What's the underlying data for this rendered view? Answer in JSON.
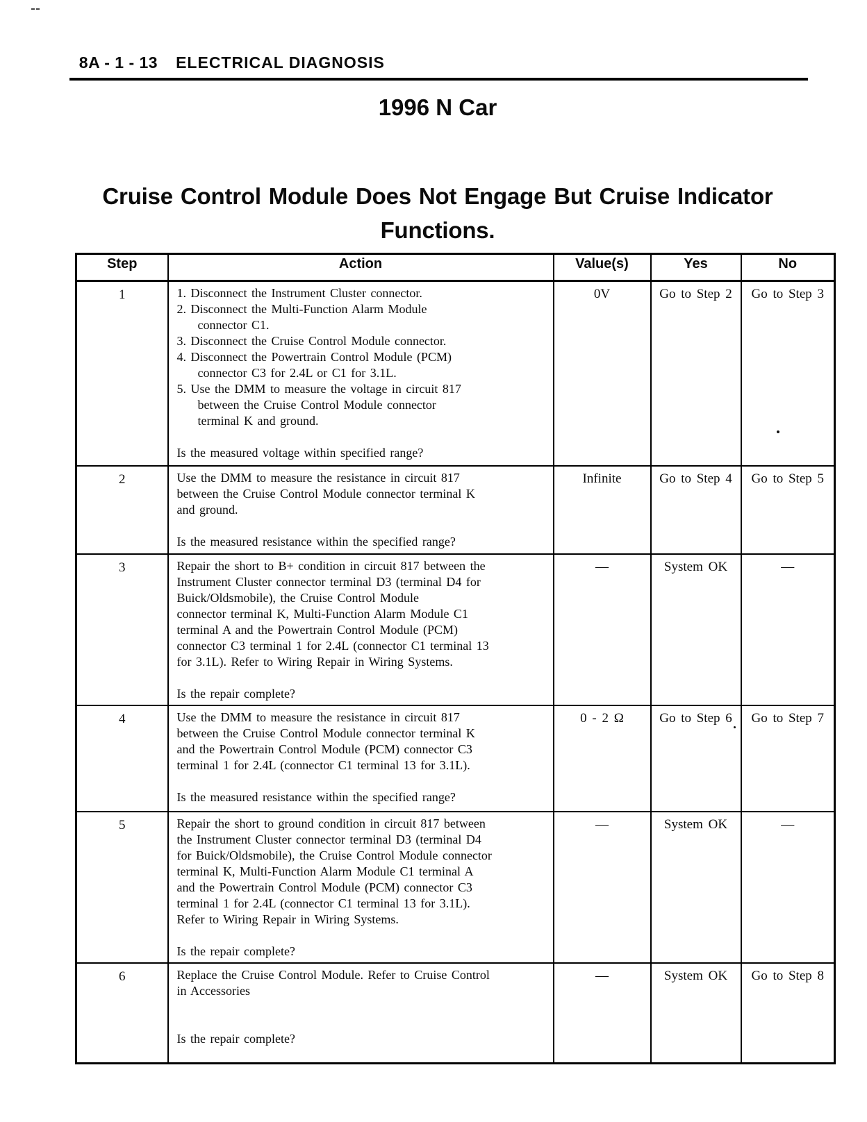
{
  "page": {
    "header": {
      "section_label": "8A - 1 - 13",
      "section_title": "ELECTRICAL DIAGNOSIS"
    },
    "doc_title": "1996 N Car",
    "procedure_title": "Cruise Control Module Does Not Engage But Cruise Indicator\nFunctions."
  },
  "table": {
    "headers": [
      "Step",
      "Action",
      "Value(s)",
      "Yes",
      "No"
    ],
    "rows": [
      {
        "step": "1",
        "action_items": [
          "1. Disconnect the Instrument Cluster connector.",
          "2. Disconnect the Multi-Function Alarm Module\nconnector C1.",
          "3. Disconnect the Cruise Control Module connector.",
          "4. Disconnect the Powertrain Control Module (PCM)\nconnector C3 for 2.4L or C1 for 3.1L.",
          "5. Use the DMM to measure the voltage in circuit 817\nbetween the Cruise Control Module connector\nterminal K and ground."
        ],
        "question": "Is the measured voltage within specified range?",
        "value": "0V",
        "yes": "Go to Step 2",
        "no": "Go to Step 3"
      },
      {
        "step": "2",
        "action_text": "Use the DMM to measure the resistance in circuit 817\nbetween the Cruise Control Module connector terminal K\nand ground.",
        "question": "Is the measured resistance within the specified range?",
        "value": "Infinite",
        "yes": "Go to Step 4",
        "no": "Go to Step 5"
      },
      {
        "step": "3",
        "action_text": "Repair the short to B+ condition in circuit 817 between the\nInstrument Cluster connector terminal D3 (terminal D4 for\nBuick/Oldsmobile), the Cruise Control Module\nconnector terminal K, Multi-Function Alarm Module C1\nterminal A and the Powertrain Control Module (PCM)\nconnector C3 terminal 1 for 2.4L (connector C1 terminal 13\nfor 3.1L). Refer to Wiring Repair in Wiring Systems.",
        "question": "Is the repair complete?",
        "value": "—",
        "yes": "System OK",
        "no": "—"
      },
      {
        "step": "4",
        "action_text": "Use the DMM to measure the resistance in circuit 817\nbetween the Cruise Control Module connector terminal K\nand the Powertrain Control Module (PCM) connector C3\nterminal 1 for 2.4L (connector C1 terminal 13 for 3.1L).",
        "question": "Is the measured resistance within the specified range?",
        "value": "0 - 2 Ω",
        "yes": "Go to Step 6",
        "no": "Go to Step 7"
      },
      {
        "step": "5",
        "action_text": "Repair the short to ground condition in circuit 817 between\nthe Instrument Cluster connector terminal D3 (terminal D4\nfor Buick/Oldsmobile), the Cruise Control Module connector\nterminal K, Multi-Function Alarm Module C1 terminal A\nand the Powertrain Control Module (PCM) connector C3\nterminal 1 for 2.4L (connector C1 terminal 13 for 3.1L).\nRefer to Wiring Repair in Wiring Systems.",
        "question": "Is the repair complete?",
        "value": "—",
        "yes": "System OK",
        "no": "—"
      },
      {
        "step": "6",
        "action_text": "Replace the Cruise Control Module. Refer to Cruise Control\nin Accessories",
        "question": "Is the repair complete?",
        "value": "—",
        "yes": "System OK",
        "no": "Go to Step 8"
      }
    ]
  }
}
